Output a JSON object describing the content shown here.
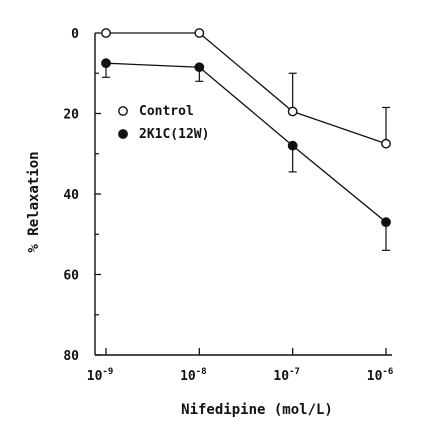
{
  "chart_data": {
    "type": "line",
    "x_scale": "log",
    "y_inverted": true,
    "xlabel": "Nifedipine (mol/L)",
    "ylabel": "% Relaxation",
    "x_ticks": [
      {
        "value": 1e-09,
        "base": "10",
        "exp": "-9"
      },
      {
        "value": 1e-08,
        "base": "10",
        "exp": "-8"
      },
      {
        "value": 1e-07,
        "base": "10",
        "exp": "-7"
      },
      {
        "value": 1e-06,
        "base": "10",
        "exp": "-6"
      }
    ],
    "y_ticks": [
      0,
      20,
      40,
      60,
      80
    ],
    "ylim": [
      0,
      80
    ],
    "legend_position": "upper-left",
    "series": [
      {
        "name": "Control",
        "marker": "open-circle",
        "x": [
          1e-09,
          1e-08,
          1e-07,
          1e-06
        ],
        "y": [
          0,
          0,
          19.5,
          27.5
        ],
        "error": [
          0,
          0,
          9.5,
          9
        ]
      },
      {
        "name": "2K1C(12W)",
        "marker": "filled-circle",
        "x": [
          1e-09,
          1e-08,
          1e-07,
          1e-06
        ],
        "y": [
          7.5,
          8.5,
          28,
          47
        ],
        "error": [
          3.5,
          3.5,
          6.5,
          7
        ]
      }
    ]
  }
}
